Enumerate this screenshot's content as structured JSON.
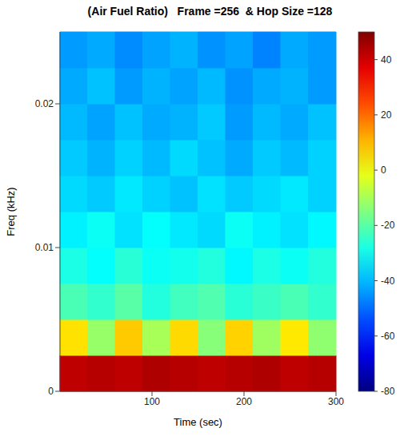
{
  "chart_data": {
    "type": "heatmap",
    "title": "(Air Fuel Ratio)   Frame =256  & Hop Size =128",
    "x_label": "Time (sec)",
    "y_label": "Freq (kHz)",
    "xlim": [
      0,
      300
    ],
    "xticks": [
      100,
      200,
      300
    ],
    "ylim": [
      0,
      0.025
    ],
    "yticks": [
      0,
      0.01,
      0.02
    ],
    "time_edges": [
      0,
      30,
      60,
      90,
      120,
      150,
      180,
      210,
      240,
      270,
      300
    ],
    "freq_edges": [
      0,
      0.0025,
      0.005,
      0.0075,
      0.01,
      0.0125,
      0.015,
      0.0175,
      0.02,
      0.0225,
      0.025
    ],
    "cells": [
      [
        42,
        43,
        42,
        44,
        43,
        42,
        43,
        44,
        42,
        43
      ],
      [
        5,
        -12,
        8,
        -10,
        6,
        -14,
        7,
        -11,
        4,
        -13
      ],
      [
        -22,
        -25,
        -20,
        -27,
        -23,
        -21,
        -26,
        -24,
        -22,
        -25
      ],
      [
        -28,
        -31,
        -26,
        -30,
        -29,
        -27,
        -32,
        -28,
        -30,
        -27
      ],
      [
        -33,
        -30,
        -35,
        -31,
        -34,
        -36,
        -30,
        -33,
        -35,
        -32
      ],
      [
        -36,
        -38,
        -34,
        -37,
        -39,
        -35,
        -38,
        -36,
        -34,
        -37
      ],
      [
        -38,
        -41,
        -37,
        -40,
        -36,
        -39,
        -42,
        -38,
        -40,
        -37
      ],
      [
        -40,
        -43,
        -39,
        -42,
        -41,
        -38,
        -44,
        -40,
        -42,
        -39
      ],
      [
        -42,
        -39,
        -44,
        -41,
        -43,
        -40,
        -45,
        -42,
        -41,
        -44
      ],
      [
        -44,
        -42,
        -46,
        -43,
        -41,
        -45,
        -43,
        -47,
        -42,
        -44
      ]
    ],
    "colorbar": {
      "range": [
        -80,
        50
      ],
      "ticks": [
        -80,
        -60,
        -40,
        -20,
        0,
        20,
        40
      ]
    }
  }
}
